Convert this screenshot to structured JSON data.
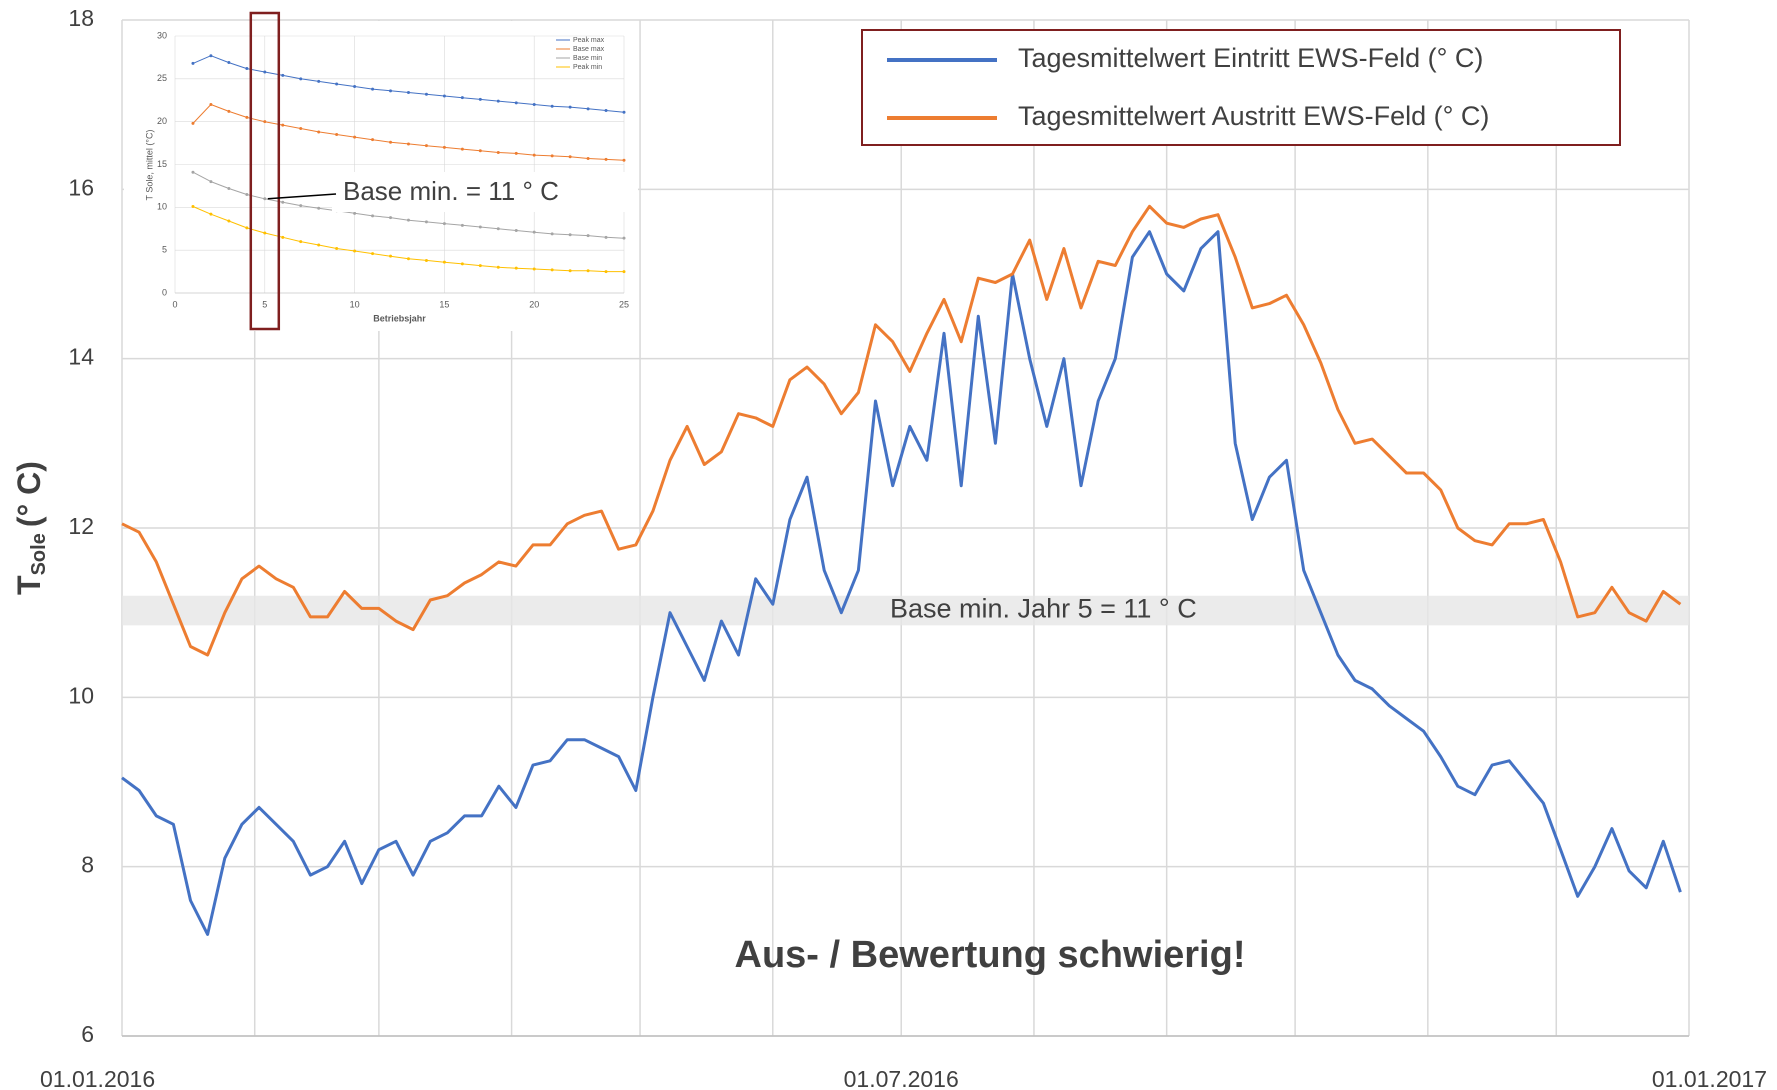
{
  "chart_data": [
    {
      "type": "line",
      "ylabel": {
        "main": "T",
        "sub": "Sole",
        "unit": "(° C)"
      },
      "x": [
        0,
        4,
        8,
        12,
        16,
        20,
        24,
        28,
        32,
        36,
        40,
        44,
        48,
        52,
        56,
        60,
        64,
        68,
        72,
        76,
        80,
        84,
        88,
        92,
        96,
        100,
        104,
        108,
        112,
        116,
        120,
        124,
        128,
        132,
        136,
        140,
        144,
        148,
        152,
        156,
        160,
        164,
        168,
        172,
        176,
        180,
        184,
        188,
        192,
        196,
        200,
        204,
        208,
        212,
        216,
        220,
        224,
        228,
        232,
        236,
        240,
        244,
        248,
        252,
        256,
        260,
        264,
        268,
        272,
        276,
        280,
        284,
        288,
        292,
        296,
        300,
        304,
        308,
        312,
        316,
        320,
        324,
        328,
        332,
        336,
        340,
        344,
        348,
        352,
        356,
        360,
        364
      ],
      "series": [
        {
          "name": "Tagesmittelwert Eintritt EWS-Feld (° C)",
          "color": "#4472c4",
          "values": [
            9.05,
            8.9,
            8.6,
            8.5,
            7.6,
            7.2,
            8.1,
            8.5,
            8.7,
            8.5,
            8.3,
            7.9,
            8.0,
            8.3,
            7.8,
            8.2,
            8.3,
            7.9,
            8.3,
            8.4,
            8.6,
            8.6,
            8.95,
            8.7,
            9.2,
            9.25,
            9.5,
            9.5,
            9.4,
            9.3,
            8.9,
            10.0,
            11.0,
            10.6,
            10.2,
            10.9,
            10.5,
            11.4,
            11.1,
            12.1,
            12.6,
            11.5,
            11.0,
            11.5,
            13.5,
            12.5,
            13.2,
            12.8,
            14.3,
            12.5,
            14.5,
            13.0,
            15.0,
            14.0,
            13.2,
            14.0,
            12.5,
            13.5,
            14.0,
            15.2,
            15.5,
            15.0,
            14.8,
            15.3,
            15.5,
            13.0,
            12.1,
            12.6,
            12.8,
            11.5,
            11.0,
            10.5,
            10.2,
            10.1,
            9.9,
            9.75,
            9.6,
            9.3,
            8.95,
            8.85,
            9.2,
            9.25,
            9.0,
            8.75,
            8.2,
            7.65,
            8.0,
            8.45,
            7.95,
            7.75,
            8.3,
            7.7
          ]
        },
        {
          "name": "Tagesmittelwert Austritt EWS-Feld (° C)",
          "color": "#ed7d31",
          "values": [
            12.05,
            11.95,
            11.6,
            11.1,
            10.6,
            10.5,
            11.0,
            11.4,
            11.55,
            11.4,
            11.3,
            10.95,
            10.95,
            11.25,
            11.05,
            11.05,
            10.9,
            10.8,
            11.15,
            11.2,
            11.35,
            11.45,
            11.6,
            11.55,
            11.8,
            11.8,
            12.05,
            12.15,
            12.2,
            11.75,
            11.8,
            12.2,
            12.8,
            13.2,
            12.75,
            12.9,
            13.35,
            13.3,
            13.2,
            13.75,
            13.9,
            13.7,
            13.35,
            13.6,
            14.4,
            14.2,
            13.85,
            14.3,
            14.7,
            14.2,
            14.95,
            14.9,
            15.0,
            15.4,
            14.7,
            15.3,
            14.6,
            15.15,
            15.1,
            15.5,
            15.8,
            15.6,
            15.55,
            15.65,
            15.7,
            15.2,
            14.6,
            14.65,
            14.75,
            14.4,
            13.95,
            13.4,
            13.0,
            13.05,
            12.85,
            12.65,
            12.65,
            12.45,
            12.0,
            11.85,
            11.8,
            12.05,
            12.05,
            12.1,
            11.6,
            10.95,
            11.0,
            11.3,
            11.0,
            10.9,
            11.25,
            11.1
          ]
        }
      ],
      "xlim": [
        0,
        366
      ],
      "xticks": [
        {
          "value": 0,
          "label": "01.01.2016"
        },
        {
          "value": 182,
          "label": "01.07.2016"
        },
        {
          "value": 366,
          "label": "01.01.2017"
        }
      ],
      "xgrid": [
        31,
        60,
        91,
        121,
        152,
        213,
        244,
        274,
        305,
        335
      ],
      "ylim": [
        6,
        18
      ],
      "yticks": [
        6,
        8,
        10,
        12,
        14,
        16,
        18
      ],
      "grid": true,
      "legend": "upper right",
      "band": {
        "range": [
          10.85,
          11.2
        ],
        "label": "Base min. Jahr 5 = 11 ° C"
      },
      "annotation": "Aus- / Bewertung schwierig!"
    },
    {
      "type": "line",
      "xlabel": "Betriebsjahr",
      "ylabel": "T Sole, mittel (°C)",
      "x": [
        1,
        2,
        3,
        4,
        5,
        6,
        7,
        8,
        9,
        10,
        11,
        12,
        13,
        14,
        15,
        16,
        17,
        18,
        19,
        20,
        21,
        22,
        23,
        24,
        25
      ],
      "series": [
        {
          "name": "Peak max",
          "color": "#4472c4",
          "values": [
            26.8,
            27.7,
            26.9,
            26.2,
            25.8,
            25.4,
            25.0,
            24.7,
            24.4,
            24.1,
            23.8,
            23.6,
            23.4,
            23.2,
            23.0,
            22.8,
            22.6,
            22.4,
            22.2,
            22.0,
            21.8,
            21.7,
            21.5,
            21.3,
            21.1
          ]
        },
        {
          "name": "Base max",
          "color": "#ed7d31",
          "values": [
            19.8,
            22.0,
            21.2,
            20.5,
            20.0,
            19.6,
            19.2,
            18.8,
            18.5,
            18.2,
            17.9,
            17.6,
            17.4,
            17.2,
            17.0,
            16.8,
            16.6,
            16.4,
            16.3,
            16.1,
            16.0,
            15.9,
            15.7,
            15.6,
            15.5
          ]
        },
        {
          "name": "Base min",
          "color": "#a5a5a5",
          "values": [
            14.1,
            13.0,
            12.2,
            11.5,
            11.0,
            10.6,
            10.2,
            9.9,
            9.6,
            9.3,
            9.0,
            8.8,
            8.5,
            8.3,
            8.1,
            7.9,
            7.7,
            7.5,
            7.3,
            7.1,
            6.9,
            6.8,
            6.7,
            6.5,
            6.4
          ]
        },
        {
          "name": "Peak min",
          "color": "#ffc000",
          "values": [
            10.1,
            9.2,
            8.4,
            7.6,
            7.0,
            6.5,
            6.0,
            5.6,
            5.2,
            4.9,
            4.6,
            4.3,
            4.0,
            3.8,
            3.6,
            3.4,
            3.2,
            3.0,
            2.9,
            2.8,
            2.7,
            2.6,
            2.6,
            2.5,
            2.5
          ]
        }
      ],
      "xlim": [
        0,
        25
      ],
      "xticks": [
        0,
        5,
        10,
        15,
        20,
        25
      ],
      "ylim": [
        0,
        30
      ],
      "yticks": [
        0,
        5,
        10,
        15,
        20,
        25,
        30
      ],
      "grid": true,
      "legend": "upper right",
      "annotation": "Base min. = 11 ° C",
      "highlight_x": 5
    }
  ]
}
